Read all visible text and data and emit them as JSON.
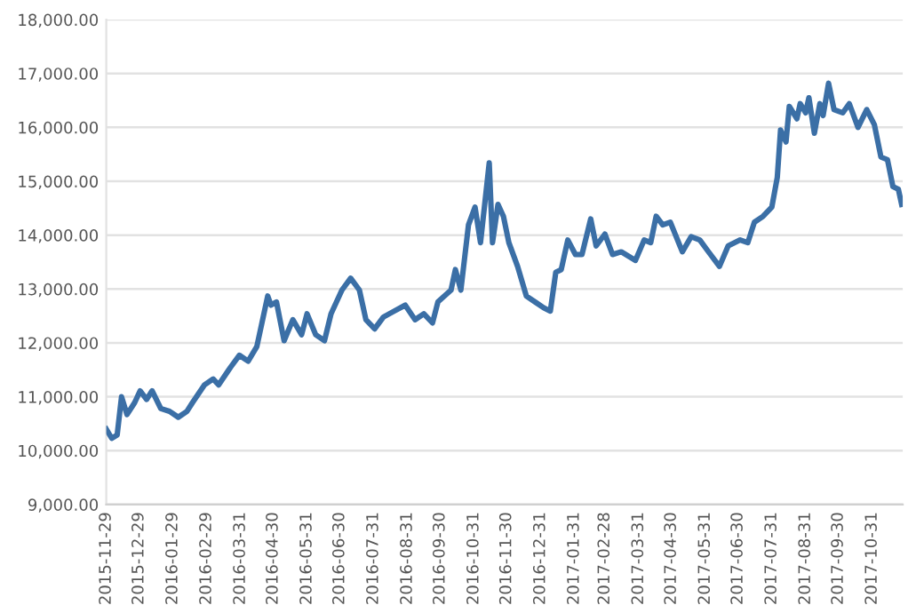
{
  "chart_data": {
    "type": "line",
    "color": "#3b6fa6",
    "grid": "y",
    "legend": false,
    "marker": "none",
    "line_style": "solid",
    "x": [
      "2015-11-29",
      "2015-12-04",
      "2015-12-09",
      "2015-12-13",
      "2015-12-18",
      "2015-12-25",
      "2015-12-30",
      "2016-01-05",
      "2016-01-10",
      "2016-01-18",
      "2016-01-26",
      "2016-02-03",
      "2016-02-11",
      "2016-02-16",
      "2016-02-27",
      "2016-03-06",
      "2016-03-11",
      "2016-03-22",
      "2016-03-30",
      "2016-04-07",
      "2016-04-15",
      "2016-04-25",
      "2016-04-28",
      "2016-05-03",
      "2016-05-10",
      "2016-05-18",
      "2016-05-26",
      "2016-05-31",
      "2016-06-08",
      "2016-06-16",
      "2016-06-22",
      "2016-07-02",
      "2016-07-10",
      "2016-07-18",
      "2016-07-24",
      "2016-08-01",
      "2016-08-09",
      "2016-08-19",
      "2016-08-29",
      "2016-09-07",
      "2016-09-15",
      "2016-09-23",
      "2016-09-28",
      "2016-10-10",
      "2016-10-14",
      "2016-10-19",
      "2016-10-26",
      "2016-11-01",
      "2016-11-06",
      "2016-11-14",
      "2016-11-17",
      "2016-11-22",
      "2016-11-27",
      "2016-12-02",
      "2016-12-10",
      "2016-12-18",
      "2016-12-26",
      "2017-01-03",
      "2017-01-09",
      "2017-01-14",
      "2017-01-19",
      "2017-01-25",
      "2017-02-01",
      "2017-02-07",
      "2017-02-15",
      "2017-02-20",
      "2017-02-28",
      "2017-03-07",
      "2017-03-15",
      "2017-03-28",
      "2017-04-05",
      "2017-04-11",
      "2017-04-16",
      "2017-04-22",
      "2017-04-29",
      "2017-05-10",
      "2017-05-18",
      "2017-05-26",
      "2017-06-03",
      "2017-06-13",
      "2017-06-21",
      "2017-07-02",
      "2017-07-09",
      "2017-07-15",
      "2017-07-23",
      "2017-07-31",
      "2017-08-05",
      "2017-08-08",
      "2017-08-13",
      "2017-08-16",
      "2017-08-23",
      "2017-08-26",
      "2017-08-31",
      "2017-09-03",
      "2017-09-08",
      "2017-09-13",
      "2017-09-16",
      "2017-09-21",
      "2017-09-26",
      "2017-10-04",
      "2017-10-10",
      "2017-10-18",
      "2017-10-26",
      "2017-11-02",
      "2017-11-08",
      "2017-11-14",
      "2017-11-19",
      "2017-11-24",
      "2017-11-27"
    ],
    "values": [
      10400,
      10230,
      10290,
      11000,
      10670,
      10890,
      11110,
      10950,
      11110,
      10780,
      10730,
      10620,
      10730,
      10890,
      11220,
      11330,
      11220,
      11550,
      11770,
      11660,
      11930,
      12870,
      12700,
      12760,
      12040,
      12430,
      12150,
      12540,
      12150,
      12040,
      12540,
      12980,
      13200,
      12980,
      12430,
      12260,
      12480,
      12590,
      12700,
      12430,
      12540,
      12370,
      12760,
      12980,
      13360,
      12980,
      14190,
      14520,
      13860,
      15340,
      13860,
      14570,
      14350,
      13860,
      13420,
      12870,
      12760,
      12650,
      12590,
      13310,
      13360,
      13910,
      13640,
      13640,
      14300,
      13800,
      14020,
      13640,
      13690,
      13530,
      13910,
      13860,
      14350,
      14190,
      14240,
      13690,
      13970,
      13910,
      13690,
      13420,
      13800,
      13910,
      13860,
      14240,
      14350,
      14520,
      15070,
      15950,
      15730,
      16390,
      16160,
      16440,
      16270,
      16550,
      15890,
      16440,
      16220,
      16820,
      16330,
      16270,
      16440,
      16000,
      16330,
      16050,
      15450,
      15400,
      14900,
      14850,
      14570
    ],
    "xlim": [
      "2015-11-29",
      "2017-11-28"
    ],
    "xticks": [
      "2015-11-29",
      "2015-12-29",
      "2016-01-29",
      "2016-02-29",
      "2016-03-31",
      "2016-04-30",
      "2016-05-31",
      "2016-06-30",
      "2016-07-31",
      "2016-08-31",
      "2016-09-30",
      "2016-10-31",
      "2016-11-30",
      "2016-12-31",
      "2017-01-31",
      "2017-02-28",
      "2017-03-31",
      "2017-04-30",
      "2017-05-31",
      "2017-06-30",
      "2017-07-31",
      "2017-08-31",
      "2017-09-30",
      "2017-10-31"
    ],
    "ylim": [
      9000,
      18000
    ],
    "yticks": [
      {
        "value": 9000,
        "label": "9,000.00"
      },
      {
        "value": 10000,
        "label": "10,000.00"
      },
      {
        "value": 11000,
        "label": "11,000.00"
      },
      {
        "value": 12000,
        "label": "12,000.00"
      },
      {
        "value": 13000,
        "label": "13,000.00"
      },
      {
        "value": 14000,
        "label": "14,000.00"
      },
      {
        "value": 15000,
        "label": "15,000.00"
      },
      {
        "value": 16000,
        "label": "16,000.00"
      },
      {
        "value": 17000,
        "label": "17,000.00"
      },
      {
        "value": 18000,
        "label": "18,000.00"
      }
    ]
  }
}
